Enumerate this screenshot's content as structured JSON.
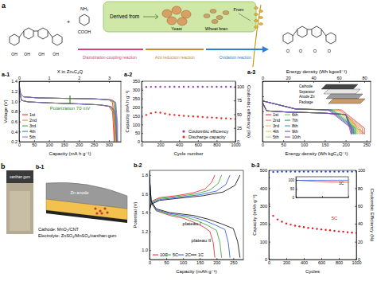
{
  "scheme": {
    "label": "a",
    "amine": "NH₂",
    "acid": "COOH",
    "plus": "+",
    "derived": "Derived from",
    "yeast": "Yeast",
    "wheat_bran": "Wheat bran",
    "from": "From",
    "reactions": [
      "Diazotization-coupling reaction",
      "Azo reduction reaction",
      "Oxidation reaction"
    ],
    "hydroxyl": "OH",
    "carbonyl": "O"
  },
  "photo": {
    "label": "b",
    "text": "xanthan gum"
  },
  "diagram": {
    "label": "b-1",
    "anode": "Zn anode",
    "cathode": "Cathode: MnO₂/CNT",
    "electrolyte": "Electrolyte: ZnSO₄/MnSO₄/xanthan-gum"
  },
  "pouch_inset": {
    "layers": [
      "Cathode",
      "Separator",
      "Anode Zn",
      "Package"
    ]
  },
  "chart_data": [
    {
      "type": "line",
      "title": "a-1",
      "xlabel": "Capacity (mA h g⁻¹)",
      "ylabel": "Voltage (V)",
      "x2label": "X in ZnₓC₄Q",
      "xlim": [
        0,
        340
      ],
      "xticks": [
        0,
        50,
        100,
        150,
        200,
        250,
        300
      ],
      "x2lim": [
        0,
        3.4
      ],
      "x2ticks": [
        0,
        1,
        2,
        3
      ],
      "ylim": [
        0.2,
        1.4
      ],
      "yticks": [
        0.2,
        0.4,
        0.6,
        0.8,
        {
          "value": 1,
          "label": "1.0"
        },
        1.2,
        1.4
      ],
      "legend": "bottom-left",
      "annotations": [
        "Polarization 70 mV"
      ],
      "series": [
        {
          "name": "1st",
          "color": "#e41a1c",
          "x": [
            0,
            2,
            8,
            30,
            100,
            200,
            270,
            300,
            312,
            318,
            318,
            312,
            300,
            250,
            150,
            60,
            15,
            5,
            2,
            0
          ],
          "values": [
            1.38,
            1.2,
            1.02,
            0.99,
            0.97,
            0.95,
            0.93,
            0.9,
            0.8,
            0.2,
            0.55,
            0.98,
            1.03,
            1.05,
            1.06,
            1.07,
            1.09,
            1.15,
            1.25,
            1.38
          ]
        },
        {
          "name": "2nd",
          "color": "#ff7f0e",
          "x": [
            0,
            2,
            8,
            30,
            100,
            200,
            270,
            302,
            315,
            322,
            322,
            316,
            304,
            250,
            150,
            60,
            15,
            5,
            2,
            0
          ],
          "values": [
            1.37,
            1.19,
            1.02,
            0.99,
            0.97,
            0.95,
            0.93,
            0.9,
            0.8,
            0.2,
            0.55,
            0.98,
            1.03,
            1.05,
            1.06,
            1.07,
            1.09,
            1.15,
            1.25,
            1.37
          ]
        },
        {
          "name": "3rd",
          "color": "#2ca02c",
          "x": [
            0,
            2,
            8,
            30,
            100,
            200,
            270,
            304,
            318,
            325,
            325,
            319,
            306,
            250,
            150,
            60,
            15,
            5,
            2,
            0
          ],
          "values": [
            1.37,
            1.19,
            1.02,
            0.99,
            0.97,
            0.95,
            0.93,
            0.9,
            0.8,
            0.2,
            0.55,
            0.98,
            1.03,
            1.05,
            1.06,
            1.07,
            1.09,
            1.15,
            1.25,
            1.37
          ]
        },
        {
          "name": "4th",
          "color": "#1f77b4",
          "x": [
            0,
            2,
            8,
            30,
            100,
            200,
            270,
            306,
            320,
            327,
            327,
            321,
            308,
            250,
            150,
            60,
            15,
            5,
            2,
            0
          ],
          "values": [
            1.36,
            1.18,
            1.02,
            0.99,
            0.97,
            0.95,
            0.93,
            0.9,
            0.8,
            0.2,
            0.55,
            0.98,
            1.03,
            1.05,
            1.06,
            1.07,
            1.09,
            1.15,
            1.25,
            1.36
          ]
        },
        {
          "name": "5th",
          "color": "#9467bd",
          "x": [
            0,
            2,
            8,
            30,
            100,
            200,
            270,
            308,
            322,
            329,
            329,
            323,
            310,
            250,
            150,
            60,
            15,
            5,
            2,
            0
          ],
          "values": [
            1.36,
            1.18,
            1.02,
            0.99,
            0.97,
            0.95,
            0.93,
            0.9,
            0.8,
            0.2,
            0.55,
            0.98,
            1.03,
            1.05,
            1.06,
            1.07,
            1.09,
            1.15,
            1.25,
            1.36
          ]
        }
      ]
    },
    {
      "type": "scatter",
      "title": "a-2",
      "xlabel": "Cycle number",
      "ylabel": "Capacity (mA h g⁻¹)",
      "y2label": "Coulombic efficiency (%)",
      "xlim": [
        0,
        1000
      ],
      "xticks": [
        0,
        200,
        400,
        600,
        800,
        1000
      ],
      "ylim": [
        0,
        350
      ],
      "yticks": [
        0,
        50,
        100,
        150,
        200,
        250,
        300,
        350
      ],
      "y2lim": [
        0,
        110
      ],
      "y2ticks": [
        0,
        25,
        50,
        75,
        100
      ],
      "legend": "bottom-right",
      "marker": "circle",
      "x": [
        1,
        50,
        100,
        150,
        200,
        250,
        300,
        350,
        400,
        450,
        500,
        550,
        600,
        650,
        700,
        750,
        800,
        850,
        900,
        950,
        1000
      ],
      "series": [
        {
          "name": "Coulombic efficiency",
          "color": "#8e44ad",
          "axis": "y2",
          "values": [
            96,
            99.5,
            99.7,
            99.7,
            99.8,
            99.7,
            99.8,
            99.8,
            99.7,
            99.8,
            99.8,
            99.7,
            99.8,
            99.8,
            99.7,
            99.8,
            99.8,
            99.7,
            99.8,
            99.8,
            99.7
          ]
        },
        {
          "name": "Discharge capacity",
          "color": "#e0302a",
          "values": [
            140,
            155,
            165,
            170,
            168,
            162,
            158,
            155,
            152,
            150,
            148,
            146,
            145,
            143,
            141,
            140,
            138,
            136,
            135,
            133,
            131
          ]
        }
      ]
    },
    {
      "type": "line",
      "title": "a-3",
      "xlabel": "Energy density (Wh kgC₄Q⁻¹)",
      "x2label": "Energy density (Wh kgcell⁻¹)",
      "xlim": [
        0,
        260
      ],
      "xticks": [
        0,
        50,
        100,
        150,
        200,
        250
      ],
      "x2lim": [
        0,
        85
      ],
      "x2ticks": [
        0,
        20,
        40,
        60,
        80
      ],
      "ylim": [
        0,
        2
      ],
      "yticks": [
        0,
        0.5,
        1,
        1.5,
        2
      ],
      "tick_labels": "x",
      "legend": "bottom-left",
      "series": [
        {
          "name": "1st",
          "color": "#e41a1c",
          "x": [
            0,
            10,
            60,
            140,
            200,
            245,
            245,
            190,
            80,
            0
          ],
          "values": [
            1.3,
            1.02,
            0.98,
            0.95,
            0.9,
            0.25,
            0.45,
            1.05,
            1.08,
            1.35
          ]
        },
        {
          "name": "2nd",
          "color": "#f46d43",
          "x": [
            0,
            10,
            60,
            140,
            200,
            240,
            240,
            185,
            80,
            0
          ],
          "values": [
            1.3,
            1.02,
            0.98,
            0.95,
            0.9,
            0.25,
            0.45,
            1.05,
            1.08,
            1.35
          ]
        },
        {
          "name": "3rd",
          "color": "#fdae61",
          "x": [
            0,
            10,
            60,
            140,
            200,
            236,
            236,
            181,
            80,
            0
          ],
          "values": [
            1.3,
            1.02,
            0.98,
            0.95,
            0.9,
            0.25,
            0.45,
            1.05,
            1.08,
            1.35
          ]
        },
        {
          "name": "4th",
          "color": "#d9c84a",
          "x": [
            0,
            10,
            60,
            140,
            200,
            232,
            232,
            177,
            80,
            0
          ],
          "values": [
            1.3,
            1.02,
            0.98,
            0.95,
            0.9,
            0.25,
            0.45,
            1.05,
            1.08,
            1.35
          ]
        },
        {
          "name": "5th",
          "color": "#a6d96a",
          "x": [
            0,
            10,
            60,
            140,
            200,
            228,
            228,
            173,
            80,
            0
          ],
          "values": [
            1.3,
            1.02,
            0.98,
            0.95,
            0.9,
            0.25,
            0.45,
            1.05,
            1.08,
            1.35
          ]
        },
        {
          "name": "6th",
          "color": "#66bd63",
          "x": [
            0,
            10,
            60,
            140,
            200,
            225,
            225,
            170,
            80,
            0
          ],
          "values": [
            1.3,
            1.02,
            0.98,
            0.95,
            0.9,
            0.25,
            0.45,
            1.05,
            1.08,
            1.35
          ]
        },
        {
          "name": "7th",
          "color": "#1a9850",
          "x": [
            0,
            10,
            60,
            140,
            200,
            222,
            222,
            167,
            80,
            0
          ],
          "values": [
            1.3,
            1.02,
            0.98,
            0.95,
            0.9,
            0.25,
            0.45,
            1.05,
            1.08,
            1.35
          ]
        },
        {
          "name": "8th",
          "color": "#3288bd",
          "x": [
            0,
            10,
            60,
            140,
            200,
            219,
            219,
            164,
            80,
            0
          ],
          "values": [
            1.3,
            1.02,
            0.98,
            0.95,
            0.9,
            0.25,
            0.45,
            1.05,
            1.08,
            1.35
          ]
        },
        {
          "name": "9th",
          "color": "#5e4fa2",
          "x": [
            0,
            10,
            60,
            140,
            200,
            216,
            216,
            161,
            80,
            0
          ],
          "values": [
            1.3,
            1.02,
            0.98,
            0.95,
            0.9,
            0.25,
            0.45,
            1.05,
            1.08,
            1.35
          ]
        },
        {
          "name": "10th",
          "color": "#8e44ad",
          "x": [
            0,
            10,
            60,
            140,
            200,
            213,
            213,
            158,
            80,
            0
          ],
          "values": [
            1.3,
            1.02,
            0.98,
            0.95,
            0.9,
            0.25,
            0.45,
            1.05,
            1.08,
            1.35
          ]
        }
      ]
    },
    {
      "type": "line",
      "title": "b-2",
      "xlabel": "Capacity (mAh g⁻¹)",
      "ylabel": "Potential (V)",
      "xlim": [
        0,
        280
      ],
      "xticks": [
        0,
        50,
        100,
        150,
        200,
        250
      ],
      "ylim": [
        0.9,
        1.85
      ],
      "yticks": [
        {
          "value": 1,
          "label": "1.0"
        },
        1.2,
        1.4,
        1.6,
        1.8
      ],
      "legend": "bottom-left",
      "annotations": [
        "plateau I",
        "plateau II"
      ],
      "series": [
        {
          "name": "10C",
          "color": "#e41a1c",
          "x": [
            0,
            5,
            30,
            80,
            130,
            165,
            185,
            195,
            null,
            0,
            5,
            20,
            60,
            100,
            130,
            160,
            180,
            190,
            195
          ],
          "values": [
            1.45,
            1.52,
            1.56,
            1.58,
            1.61,
            1.65,
            1.72,
            1.8,
            null,
            1.76,
            1.5,
            1.42,
            1.37,
            1.34,
            1.3,
            1.25,
            1.2,
            1.08,
            0.92
          ]
        },
        {
          "name": "5C",
          "color": "#2ca02c",
          "x": [
            0,
            5,
            30,
            80,
            140,
            180,
            205,
            215,
            null,
            0,
            5,
            20,
            60,
            110,
            145,
            175,
            200,
            210,
            215
          ],
          "values": [
            1.44,
            1.51,
            1.55,
            1.57,
            1.6,
            1.64,
            1.71,
            1.8,
            null,
            1.77,
            1.51,
            1.42,
            1.38,
            1.35,
            1.31,
            1.26,
            1.21,
            1.08,
            0.92
          ]
        },
        {
          "name": "2C",
          "color": "#1f4fd8",
          "x": [
            0,
            5,
            30,
            80,
            150,
            200,
            228,
            240,
            null,
            0,
            5,
            20,
            60,
            120,
            160,
            195,
            225,
            235,
            240
          ],
          "values": [
            1.43,
            1.5,
            1.54,
            1.56,
            1.59,
            1.63,
            1.7,
            1.8,
            null,
            1.78,
            1.52,
            1.43,
            1.39,
            1.36,
            1.32,
            1.27,
            1.22,
            1.08,
            0.92
          ]
        },
        {
          "name": "1C",
          "color": "#000000",
          "x": [
            0,
            5,
            30,
            80,
            160,
            220,
            255,
            270,
            null,
            0,
            5,
            20,
            60,
            130,
            175,
            215,
            250,
            263,
            270
          ],
          "values": [
            1.42,
            1.49,
            1.53,
            1.55,
            1.58,
            1.62,
            1.69,
            1.8,
            null,
            1.78,
            1.52,
            1.44,
            1.4,
            1.37,
            1.33,
            1.28,
            1.23,
            1.09,
            0.92
          ]
        }
      ]
    },
    {
      "type": "scatter",
      "title": "b-3",
      "xlabel": "Cycles",
      "ylabel": "Capacity (mAh g⁻¹)",
      "y2label": "Coulombic Efficiency (%)",
      "xlim": [
        0,
        1000
      ],
      "xticks": [
        0,
        200,
        400,
        600,
        800,
        1000
      ],
      "ylim": [
        0,
        500
      ],
      "yticks": [
        0,
        100,
        200,
        300,
        400,
        500
      ],
      "y2lim": [
        0,
        100
      ],
      "y2ticks": [
        0,
        20,
        40,
        60,
        80,
        100
      ],
      "marker": "circle",
      "annotations": [
        "5C"
      ],
      "x": [
        1,
        50,
        100,
        150,
        200,
        250,
        300,
        350,
        400,
        450,
        500,
        550,
        600,
        650,
        700,
        750,
        800,
        850,
        900,
        950,
        1000
      ],
      "series": [
        {
          "color": "#e41a1c",
          "values": [
            310,
            245,
            225,
            212,
            202,
            196,
            190,
            186,
            182,
            178,
            175,
            172,
            169,
            166,
            164,
            161,
            158,
            156,
            153,
            151,
            149
          ]
        },
        {
          "color": "#1f4fd8",
          "axis": "y2",
          "values": [
            92,
            98.2,
            98.5,
            98.6,
            98.6,
            98.7,
            98.6,
            98.7,
            98.7,
            98.6,
            98.7,
            98.7,
            98.6,
            98.7,
            98.7,
            98.6,
            98.7,
            98.7,
            98.6,
            98.7,
            98.7
          ]
        }
      ],
      "inset": {
        "type": "line",
        "title": "1C",
        "xlim": [
          0,
          100
        ],
        "xticks": [
          0,
          50,
          100
        ],
        "ylim": [
          0,
          120
        ],
        "yticks": [
          0,
          50,
          100
        ],
        "tick_labels": "y",
        "x": [
          0,
          20,
          40,
          60,
          80,
          100
        ],
        "series": [
          {
            "color": "#e41a1c",
            "values": [
              100,
              96,
              93,
              91,
              89,
              88
            ]
          },
          {
            "color": "#1f4fd8",
            "values": [
              99,
              99.5,
              99.6,
              99.6,
              99.7,
              99.7
            ]
          }
        ]
      }
    }
  ]
}
